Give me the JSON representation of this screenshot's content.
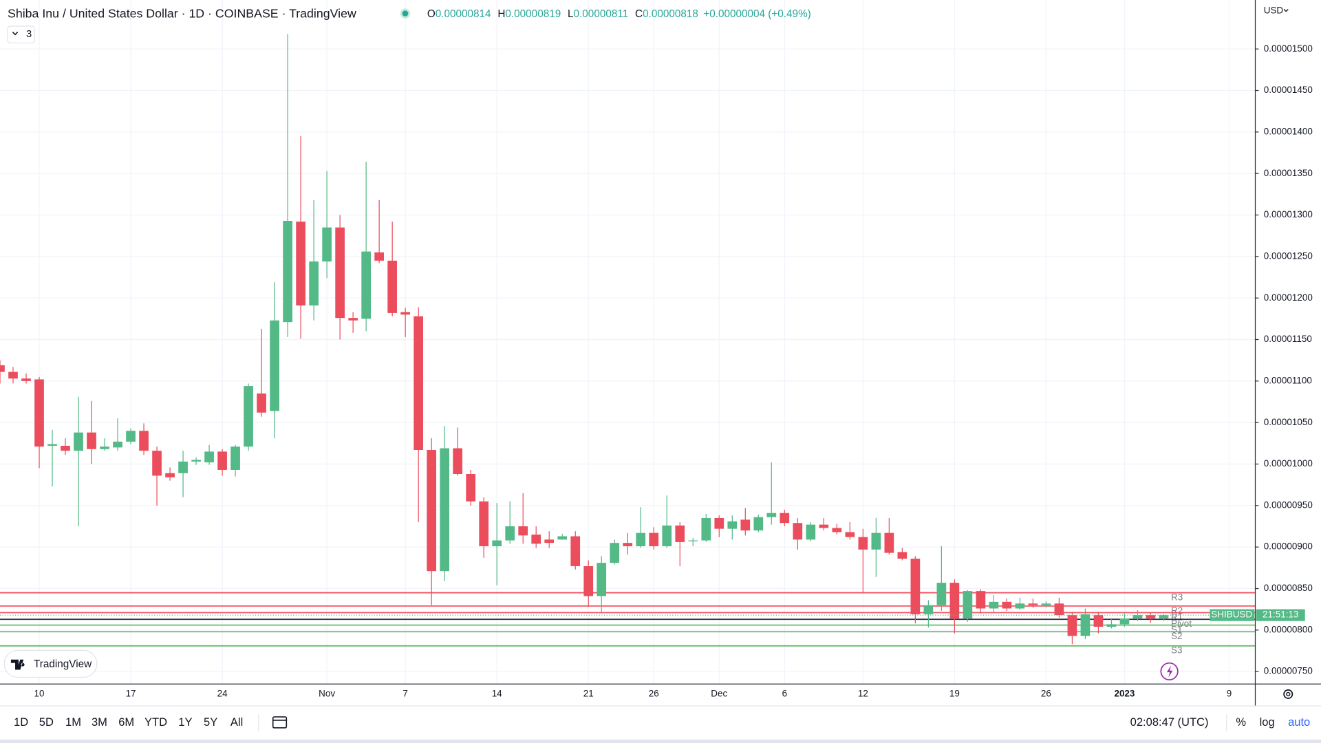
{
  "header": {
    "title": "Shiba Inu / United States Dollar · 1D · COINBASE · TradingView",
    "ohlc": [
      {
        "key": "O",
        "value": "0.00000814"
      },
      {
        "key": "H",
        "value": "0.00000819"
      },
      {
        "key": "L",
        "value": "0.00000811"
      },
      {
        "key": "C",
        "value": "0.00000818"
      }
    ],
    "change": "+0.00000004 (+0.49%)",
    "indicators_count": 3,
    "currency": "USD"
  },
  "branding": "TradingView",
  "toolbar": {
    "ranges": [
      "1D",
      "5D",
      "1M",
      "3M",
      "6M",
      "YTD",
      "1Y",
      "5Y",
      "All"
    ],
    "clock": "02:08:47 (UTC)",
    "scale_buttons": [
      "%",
      "log",
      "auto"
    ]
  },
  "chart_data": {
    "type": "candlestick",
    "x": [
      "2022-10-07",
      "2022-10-08",
      "2022-10-09",
      "2022-10-10",
      "2022-10-11",
      "2022-10-12",
      "2022-10-13",
      "2022-10-14",
      "2022-10-15",
      "2022-10-16",
      "2022-10-17",
      "2022-10-18",
      "2022-10-19",
      "2022-10-20",
      "2022-10-21",
      "2022-10-22",
      "2022-10-23",
      "2022-10-24",
      "2022-10-25",
      "2022-10-26",
      "2022-10-27",
      "2022-10-28",
      "2022-10-29",
      "2022-10-30",
      "2022-10-31",
      "2022-11-01",
      "2022-11-02",
      "2022-11-03",
      "2022-11-04",
      "2022-11-05",
      "2022-11-06",
      "2022-11-07",
      "2022-11-08",
      "2022-11-09",
      "2022-11-10",
      "2022-11-11",
      "2022-11-12",
      "2022-11-13",
      "2022-11-14",
      "2022-11-15",
      "2022-11-16",
      "2022-11-17",
      "2022-11-18",
      "2022-11-19",
      "2022-11-20",
      "2022-11-21",
      "2022-11-22",
      "2022-11-23",
      "2022-11-24",
      "2022-11-25",
      "2022-11-26",
      "2022-11-27",
      "2022-11-28",
      "2022-11-29",
      "2022-11-30",
      "2022-12-01",
      "2022-12-02",
      "2022-12-03",
      "2022-12-04",
      "2022-12-05",
      "2022-12-06",
      "2022-12-07",
      "2022-12-08",
      "2022-12-09",
      "2022-12-10",
      "2022-12-11",
      "2022-12-12",
      "2022-12-13",
      "2022-12-14",
      "2022-12-15",
      "2022-12-16",
      "2022-12-17",
      "2022-12-18",
      "2022-12-19",
      "2022-12-20",
      "2022-12-21",
      "2022-12-22",
      "2022-12-23",
      "2022-12-24",
      "2022-12-25",
      "2022-12-26",
      "2022-12-27",
      "2022-12-28",
      "2022-12-29",
      "2022-12-30",
      "2022-12-31",
      "2023-01-01",
      "2023-01-02",
      "2023-01-03",
      "2023-01-04"
    ],
    "series": [
      {
        "name": "SHIBUSD",
        "up_color": "#53b987",
        "down_color": "#eb4d5c",
        "open": [
          1.119e-05,
          1.111e-05,
          1.103e-05,
          1.102e-05,
          1.022e-05,
          1.022e-05,
          1.016e-05,
          1.038e-05,
          1.018e-05,
          1.02e-05,
          1.027e-05,
          1.04e-05,
          1.016e-05,
          9.89e-06,
          9.89e-06,
          1.003e-05,
          1.002e-05,
          1.015e-05,
          9.93e-06,
          1.021e-05,
          1.085e-05,
          1.064e-05,
          1.171e-05,
          1.292e-05,
          1.191e-05,
          1.244e-05,
          1.285e-05,
          1.176e-05,
          1.175e-05,
          1.255e-05,
          1.245e-05,
          1.183e-05,
          1.178e-05,
          1.017e-05,
          8.71e-06,
          1.019e-05,
          9.88e-06,
          9.55e-06,
          9.01e-06,
          9.08e-06,
          9.25e-06,
          9.15e-06,
          9.09e-06,
          9.09e-06,
          9.13e-06,
          8.77e-06,
          8.41e-06,
          8.81e-06,
          9.05e-06,
          9.01e-06,
          9.17e-06,
          9.01e-06,
          9.26e-06,
          9.07e-06,
          9.08e-06,
          9.35e-06,
          9.22e-06,
          9.33e-06,
          9.2e-06,
          9.36e-06,
          9.41e-06,
          9.29e-06,
          9.09e-06,
          9.27e-06,
          9.23e-06,
          9.18e-06,
          9.12e-06,
          8.97e-06,
          9.17e-06,
          8.94e-06,
          8.86e-06,
          8.19e-06,
          8.3e-06,
          8.57e-06,
          8.14e-06,
          8.47e-06,
          8.26e-06,
          8.34e-06,
          8.26e-06,
          8.32e-06,
          8.3e-06,
          8.32e-06,
          8.18e-06,
          7.93e-06,
          8.18e-06,
          8.04e-06,
          8.07e-06,
          8.14e-06,
          8.18e-06,
          8.14e-06
        ],
        "high": [
          1.125e-05,
          1.117e-05,
          1.109e-05,
          1.105e-05,
          1.041e-05,
          1.031e-05,
          1.081e-05,
          1.076e-05,
          1.031e-05,
          1.055e-05,
          1.043e-05,
          1.049e-05,
          1.021e-05,
          9.96e-06,
          1.016e-05,
          1.008e-05,
          1.023e-05,
          1.018e-05,
          1.023e-05,
          1.097e-05,
          1.163e-05,
          1.219e-05,
          1.518e-05,
          1.395e-05,
          1.318e-05,
          1.353e-05,
          1.3e-05,
          1.183e-05,
          1.364e-05,
          1.318e-05,
          1.292e-05,
          1.188e-05,
          1.189e-05,
          1.031e-05,
          1.046e-05,
          1.044e-05,
          9.93e-06,
          9.6e-06,
          9.53e-06,
          9.55e-06,
          9.65e-06,
          9.25e-06,
          9.19e-06,
          9.16e-06,
          9.19e-06,
          8.84e-06,
          8.89e-06,
          9.09e-06,
          9.17e-06,
          9.48e-06,
          9.24e-06,
          9.62e-06,
          9.3e-06,
          9.11e-06,
          9.4e-06,
          9.38e-06,
          9.38e-06,
          9.47e-06,
          9.39e-06,
          1.002e-05,
          9.45e-06,
          9.35e-06,
          9.3e-06,
          9.35e-06,
          9.28e-06,
          9.3e-06,
          9.22e-06,
          9.35e-06,
          9.35e-06,
          8.99e-06,
          8.89e-06,
          8.36e-06,
          9.01e-06,
          8.61e-06,
          8.48e-06,
          8.49e-06,
          8.42e-06,
          8.38e-06,
          8.39e-06,
          8.38e-06,
          8.35e-06,
          8.39e-06,
          8.22e-06,
          8.26e-06,
          8.22e-06,
          8.13e-06,
          8.2e-06,
          8.24e-06,
          8.21e-06,
          8.19e-06
        ],
        "low": [
          1.097e-05,
          1.097e-05,
          1.097e-05,
          9.95e-06,
          9.73e-06,
          1.011e-05,
          9.25e-06,
          1e-05,
          1.016e-05,
          1.016e-05,
          1.024e-05,
          1.011e-05,
          9.5e-06,
          9.8e-06,
          9.6e-06,
          9.99e-06,
          9.99e-06,
          9.86e-06,
          9.85e-06,
          1.016e-05,
          1.057e-05,
          1.031e-05,
          1.153e-05,
          1.151e-05,
          1.173e-05,
          1.224e-05,
          1.15e-05,
          1.158e-05,
          1.16e-05,
          1.242e-05,
          1.178e-05,
          1.153e-05,
          9.3e-06,
          8.3e-06,
          8.59e-06,
          9.86e-06,
          9.5e-06,
          8.87e-06,
          8.54e-06,
          9.04e-06,
          9.04e-06,
          8.99e-06,
          8.99e-06,
          9.09e-06,
          8.73e-06,
          8.28e-06,
          8.2e-06,
          8.79e-06,
          8.91e-06,
          8.99e-06,
          8.97e-06,
          8.99e-06,
          8.77e-06,
          9.01e-06,
          9.06e-06,
          9.12e-06,
          9.09e-06,
          9.14e-06,
          9.18e-06,
          9.27e-06,
          9.25e-06,
          8.97e-06,
          9.07e-06,
          9.2e-06,
          9.15e-06,
          9.09e-06,
          8.45e-06,
          8.64e-06,
          8.91e-06,
          8.84e-06,
          8.08e-06,
          8.03e-06,
          8.23e-06,
          7.96e-06,
          8.1e-06,
          8.2e-06,
          8.22e-06,
          8.23e-06,
          8.24e-06,
          8.27e-06,
          8.27e-06,
          8.15e-06,
          7.83e-06,
          7.89e-06,
          7.96e-06,
          8.02e-06,
          8.04e-06,
          8.11e-06,
          8.09e-06,
          8.11e-06
        ],
        "close": [
          1.111e-05,
          1.103e-05,
          1.1e-05,
          1.021e-05,
          1.024e-05,
          1.016e-05,
          1.038e-05,
          1.018e-05,
          1.021e-05,
          1.027e-05,
          1.04e-05,
          1.016e-05,
          9.86e-06,
          9.84e-06,
          1.003e-05,
          1.005e-05,
          1.015e-05,
          9.93e-06,
          1.021e-05,
          1.094e-05,
          1.062e-05,
          1.173e-05,
          1.293e-05,
          1.191e-05,
          1.244e-05,
          1.285e-05,
          1.176e-05,
          1.173e-05,
          1.256e-05,
          1.245e-05,
          1.182e-05,
          1.18e-05,
          1.017e-05,
          8.71e-06,
          1.019e-05,
          9.88e-06,
          9.55e-06,
          9.01e-06,
          9.08e-06,
          9.25e-06,
          9.14e-06,
          9.04e-06,
          9.05e-06,
          9.13e-06,
          8.77e-06,
          8.41e-06,
          8.81e-06,
          9.05e-06,
          9.01e-06,
          9.17e-06,
          9.01e-06,
          9.26e-06,
          9.06e-06,
          9.08e-06,
          9.35e-06,
          9.22e-06,
          9.31e-06,
          9.2e-06,
          9.36e-06,
          9.41e-06,
          9.29e-06,
          9.09e-06,
          9.27e-06,
          9.23e-06,
          9.18e-06,
          9.12e-06,
          8.97e-06,
          9.17e-06,
          8.93e-06,
          8.86e-06,
          8.19e-06,
          8.3e-06,
          8.57e-06,
          8.14e-06,
          8.47e-06,
          8.26e-06,
          8.34e-06,
          8.26e-06,
          8.32e-06,
          8.3e-06,
          8.32e-06,
          8.18e-06,
          7.93e-06,
          8.19e-06,
          8.04e-06,
          8.07e-06,
          8.14e-06,
          8.18e-06,
          8.14e-06,
          8.18e-06
        ]
      }
    ],
    "levels": [
      {
        "name": "R3",
        "value": 8.45e-06,
        "color": "#f23645"
      },
      {
        "name": "R2",
        "value": 8.29e-06,
        "color": "#f23645"
      },
      {
        "name": "R1",
        "value": 8.21e-06,
        "color": "#f23645"
      },
      {
        "name": "Pivot",
        "value": 8.13e-06,
        "color": "#131722"
      },
      {
        "name": "S1",
        "value": 8.06e-06,
        "color": "#4caf50"
      },
      {
        "name": "S2",
        "value": 7.98e-06,
        "color": "#4caf50"
      },
      {
        "name": "S3",
        "value": 7.81e-06,
        "color": "#4caf50"
      }
    ],
    "countdown": "21:51:13",
    "xlim": [
      "2022-10-07",
      "2023-01-11"
    ],
    "xticks": [
      {
        "value": "2022-10-10",
        "label": "10"
      },
      {
        "value": "2022-10-17",
        "label": "17"
      },
      {
        "value": "2022-10-24",
        "label": "24"
      },
      {
        "value": "2022-11-01",
        "label": "Nov"
      },
      {
        "value": "2022-11-07",
        "label": "7"
      },
      {
        "value": "2022-11-14",
        "label": "14"
      },
      {
        "value": "2022-11-21",
        "label": "21"
      },
      {
        "value": "2022-11-26",
        "label": "26"
      },
      {
        "value": "2022-12-01",
        "label": "Dec"
      },
      {
        "value": "2022-12-06",
        "label": "6"
      },
      {
        "value": "2022-12-12",
        "label": "12"
      },
      {
        "value": "2022-12-19",
        "label": "19"
      },
      {
        "value": "2022-12-26",
        "label": "26"
      },
      {
        "value": "2023-01-01",
        "label": "2023"
      },
      {
        "value": "2023-01-09",
        "label": "9"
      }
    ],
    "ylim": [
      7.35e-06,
      1.559e-05
    ],
    "yticks": [
      {
        "value": 7.5e-06,
        "label": "0.00000750"
      },
      {
        "value": 8e-06,
        "label": "0.00000800"
      },
      {
        "value": 8.5e-06,
        "label": "0.00000850"
      },
      {
        "value": 9e-06,
        "label": "0.00000900"
      },
      {
        "value": 9.5e-06,
        "label": "0.00000950"
      },
      {
        "value": 1e-05,
        "label": "0.00001000"
      },
      {
        "value": 1.05e-05,
        "label": "0.00001050"
      },
      {
        "value": 1.1e-05,
        "label": "0.00001100"
      },
      {
        "value": 1.15e-05,
        "label": "0.00001150"
      },
      {
        "value": 1.2e-05,
        "label": "0.00001200"
      },
      {
        "value": 1.25e-05,
        "label": "0.00001250"
      },
      {
        "value": 1.3e-05,
        "label": "0.00001300"
      },
      {
        "value": 1.35e-05,
        "label": "0.00001350"
      },
      {
        "value": 1.4e-05,
        "label": "0.00001400"
      },
      {
        "value": 1.45e-05,
        "label": "0.00001450"
      },
      {
        "value": 1.5e-05,
        "label": "0.00001500"
      }
    ],
    "grid": true
  }
}
